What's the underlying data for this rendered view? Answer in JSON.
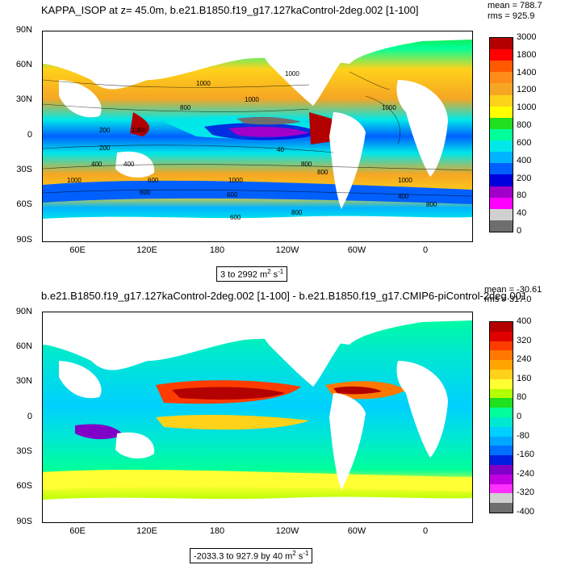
{
  "top": {
    "title": "KAPPA_ISOP at z=  45.0m, b.e21.B1850.f19_g17.127kaControl-2deg.002 [1-100]",
    "mean": "mean = 788.7",
    "rms": "rms = 925.9",
    "range_text": "3 to 2992",
    "units_text": "m",
    "units_exp": "2",
    "units_s": " s",
    "units_sexp": "-1",
    "lat_labels": [
      "90N",
      "60N",
      "30N",
      "0",
      "30S",
      "60S",
      "90S"
    ],
    "lon_labels": [
      "60E",
      "120E",
      "180",
      "120W",
      "60W",
      "0"
    ],
    "colorbar_labels": [
      "3000",
      "1800",
      "1400",
      "1200",
      "1000",
      "800",
      "600",
      "400",
      "200",
      "80",
      "40",
      "0"
    ],
    "colorbar_colors": [
      "#b30000",
      "#ff0000",
      "#ff5a00",
      "#ff8c1a",
      "#f5a623",
      "#ffd21a",
      "#ffff00",
      "#20e020",
      "#00ff9a",
      "#00e8e8",
      "#00b4ff",
      "#0060ff",
      "#0000dd",
      "#a000c8",
      "#ff00ff",
      "#d0d0d0",
      "#6e6e6e"
    ],
    "contour_labels": [
      "1000",
      "1000",
      "800",
      "1000",
      "200",
      "400",
      "1000",
      "800",
      "1000",
      "1000",
      "40",
      "800",
      "1000",
      "600",
      "600",
      "800",
      "600",
      "1000",
      "200",
      "400",
      "600",
      "400",
      "800"
    ]
  },
  "bottom": {
    "title": "b.e21.B1850.f19_g17.127kaControl-2deg.002 [1-100] - b.e21.B1850.f19_g17.CMIP6-piControl-2deg.001 [401-",
    "mean": "mean = -30.61",
    "rms": "rms = 317.0",
    "range_text": "-2033.3 to 927.9 by 40",
    "units_text": "m",
    "units_exp": "2",
    "units_s": " s",
    "units_sexp": "-1",
    "lat_labels": [
      "90N",
      "60N",
      "30N",
      "0",
      "30S",
      "60S",
      "90S"
    ],
    "lon_labels": [
      "60E",
      "120E",
      "180",
      "120W",
      "60W",
      "0"
    ],
    "colorbar_labels": [
      "400",
      "320",
      "240",
      "160",
      "80",
      "0",
      "-80",
      "-160",
      "-240",
      "-320",
      "-400"
    ],
    "colorbar_colors": [
      "#b30000",
      "#e00000",
      "#ff3c00",
      "#ff7800",
      "#ffa500",
      "#ffd21a",
      "#ffff33",
      "#b4ff00",
      "#20e020",
      "#00ff9a",
      "#00e8d0",
      "#00d0ff",
      "#00a8ff",
      "#0070ff",
      "#0020e0",
      "#8000c8",
      "#c000e0",
      "#ff30ff",
      "#d0d0d0",
      "#6e6e6e"
    ]
  }
}
